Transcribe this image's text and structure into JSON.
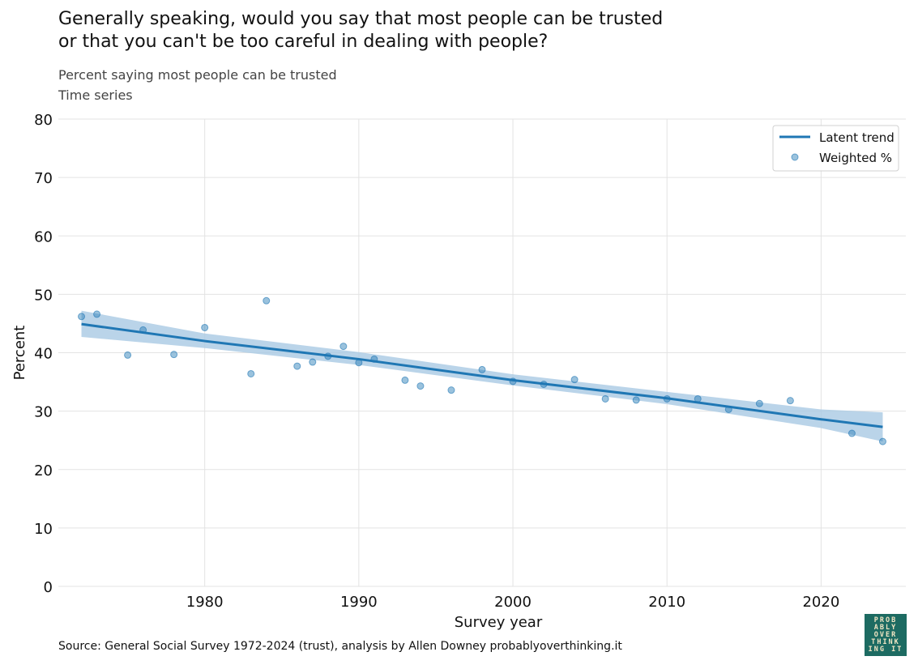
{
  "title_lines": [
    "Generally speaking, would you say that most people can be trusted",
    "or that you can't be too careful in dealing with people?"
  ],
  "subtitle_lines": [
    "Percent saying most people can be trusted",
    "Time series"
  ],
  "source": "Source: General Social Survey 1972-2024 (trust), analysis by Allen Downey probablyoverthinking.it",
  "logo_lines": [
    "PROB",
    "ABLY",
    "OVER",
    "THINK",
    "ING IT"
  ],
  "colors": {
    "trend": "#1f77b4",
    "band": "#a9c9e3",
    "points": "#1f77b4",
    "logo_bg": "#1d6b62"
  },
  "chart_data": {
    "type": "scatter",
    "xlabel": "Survey year",
    "ylabel": "Percent",
    "xlim": [
      1970.5,
      2025.5
    ],
    "ylim": [
      0,
      80
    ],
    "xticks": [
      1980,
      1990,
      2000,
      2010,
      2020
    ],
    "yticks": [
      0,
      10,
      20,
      30,
      40,
      50,
      60,
      70,
      80
    ],
    "grid": true,
    "legend_position": "top-right",
    "legend": [
      "Latent trend",
      "Weighted %"
    ],
    "series": [
      {
        "name": "Weighted %",
        "kind": "scatter",
        "x": [
          1972,
          1973,
          1975,
          1976,
          1978,
          1980,
          1983,
          1984,
          1986,
          1987,
          1988,
          1989,
          1990,
          1991,
          1993,
          1994,
          1996,
          1998,
          2000,
          2002,
          2004,
          2006,
          2008,
          2010,
          2012,
          2014,
          2016,
          2018,
          2022,
          2024
        ],
        "y": [
          46.2,
          46.6,
          39.6,
          43.9,
          39.7,
          44.3,
          36.4,
          48.9,
          37.7,
          38.4,
          39.4,
          41.1,
          38.3,
          38.9,
          35.3,
          34.3,
          33.6,
          37.1,
          35.1,
          34.6,
          35.4,
          32.1,
          31.9,
          32.1,
          32.1,
          30.3,
          31.3,
          31.8,
          26.2,
          24.8
        ]
      },
      {
        "name": "Latent trend",
        "kind": "line",
        "x": [
          1972,
          1980,
          1990,
          2000,
          2010,
          2020,
          2024
        ],
        "y": [
          44.9,
          42.0,
          38.9,
          35.3,
          32.2,
          28.6,
          27.3
        ],
        "lower": [
          42.7,
          40.8,
          37.9,
          34.4,
          31.2,
          27.1,
          24.8
        ],
        "upper": [
          47.2,
          43.3,
          40.1,
          36.3,
          33.3,
          30.3,
          29.8
        ]
      }
    ]
  }
}
